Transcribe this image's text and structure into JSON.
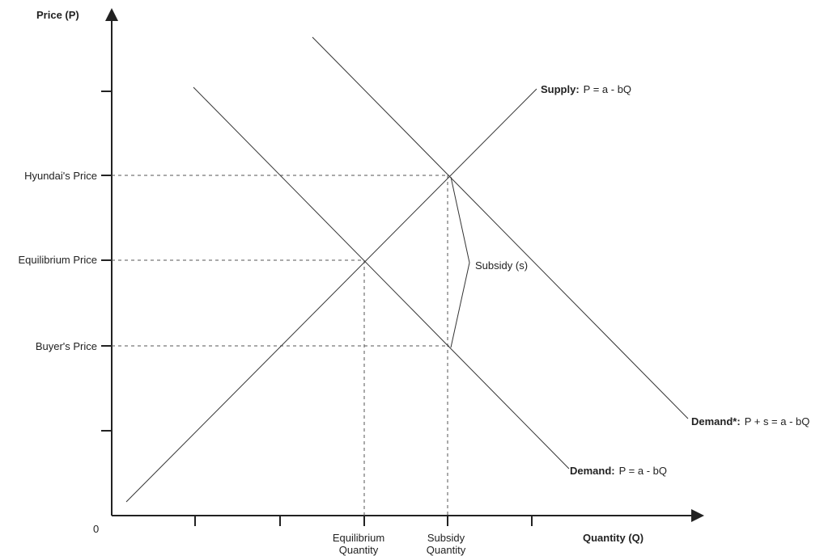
{
  "axes": {
    "y_label": "Price (P)",
    "x_label": "Quantity (Q)",
    "origin": "0"
  },
  "price_labels": {
    "hyundai": "Hyundai's Price",
    "equilibrium": "Equilibrium Price",
    "buyer": "Buyer's Price"
  },
  "quantity_labels": {
    "equilibrium": {
      "line1": "Equilibrium",
      "line2": "Quantity"
    },
    "subsidy": {
      "line1": "Subsidy",
      "line2": "Quantity"
    }
  },
  "curves": {
    "supply": {
      "name": "Supply:",
      "equation": "P = a - bQ"
    },
    "demand": {
      "name": "Demand:",
      "equation": "P = a - bQ"
    },
    "demand_star": {
      "name": "Demand*:",
      "equation": "P + s = a - bQ"
    }
  },
  "subsidy_label": "Subsidy (s)"
}
